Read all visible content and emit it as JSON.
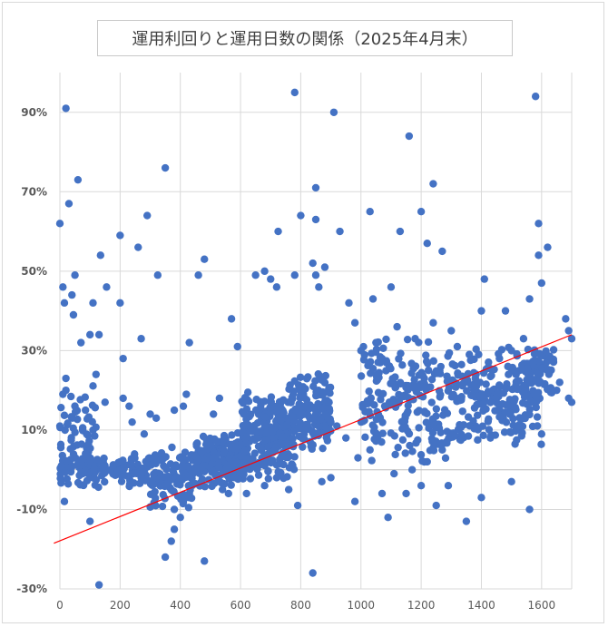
{
  "chart_data": {
    "type": "scatter",
    "title": "運用利回りと運用日数の関係（2025年4月末）",
    "xlabel": "",
    "ylabel": "",
    "xlim": [
      0,
      1700
    ],
    "ylim": [
      -30,
      100
    ],
    "x_ticks": [
      0,
      200,
      400,
      600,
      800,
      1000,
      1200,
      1400,
      1600
    ],
    "y_ticks": [
      -30,
      -10,
      10,
      30,
      50,
      70,
      90
    ],
    "y_tick_labels": [
      "-30%",
      "-10%",
      "10%",
      "30%",
      "50%",
      "70%",
      "90%"
    ],
    "grid": true,
    "legend": "none",
    "point_color": "#4472c4",
    "trendline": {
      "color": "#ff0000",
      "x": [
        -20,
        1700
      ],
      "y": [
        -18.5,
        34
      ]
    },
    "clusters": [
      {
        "x": [
          0,
          300
        ],
        "y": [
          -5,
          5
        ],
        "n": 140
      },
      {
        "x": [
          0,
          120
        ],
        "y": [
          -2,
          22
        ],
        "n": 50
      },
      {
        "x": [
          300,
          450
        ],
        "y": [
          -10,
          6
        ],
        "n": 110
      },
      {
        "x": [
          450,
          620
        ],
        "y": [
          -5,
          10
        ],
        "n": 220
      },
      {
        "x": [
          600,
          780
        ],
        "y": [
          -3,
          20
        ],
        "n": 260
      },
      {
        "x": [
          760,
          900
        ],
        "y": [
          3,
          25
        ],
        "n": 140
      },
      {
        "x": [
          1000,
          1330
        ],
        "y": [
          0,
          35
        ],
        "n": 230
      },
      {
        "x": [
          1320,
          1600
        ],
        "y": [
          5,
          32
        ],
        "n": 200
      },
      {
        "x": [
          1540,
          1640
        ],
        "y": [
          18,
          32
        ],
        "n": 50
      }
    ],
    "points": [
      [
        20,
        91
      ],
      [
        30,
        67
      ],
      [
        60,
        73
      ],
      [
        0,
        62
      ],
      [
        10,
        46
      ],
      [
        40,
        44
      ],
      [
        50,
        49
      ],
      [
        45,
        39
      ],
      [
        15,
        42
      ],
      [
        110,
        42
      ],
      [
        100,
        34
      ],
      [
        70,
        32
      ],
      [
        130,
        34
      ],
      [
        135,
        54
      ],
      [
        155,
        46
      ],
      [
        200,
        59
      ],
      [
        200,
        42
      ],
      [
        210,
        28
      ],
      [
        260,
        56
      ],
      [
        290,
        64
      ],
      [
        350,
        76
      ],
      [
        325,
        49
      ],
      [
        460,
        49
      ],
      [
        480,
        53
      ],
      [
        570,
        38
      ],
      [
        590,
        31
      ],
      [
        430,
        32
      ],
      [
        270,
        33
      ],
      [
        20,
        20
      ],
      [
        20,
        23
      ],
      [
        10,
        19
      ],
      [
        0,
        11
      ],
      [
        5,
        1
      ],
      [
        15,
        -8
      ],
      [
        100,
        -13
      ],
      [
        130,
        -29
      ],
      [
        110,
        10
      ],
      [
        85,
        15
      ],
      [
        120,
        24
      ],
      [
        150,
        17
      ],
      [
        210,
        18
      ],
      [
        230,
        16
      ],
      [
        240,
        12
      ],
      [
        280,
        9
      ],
      [
        300,
        14
      ],
      [
        320,
        13
      ],
      [
        380,
        15
      ],
      [
        410,
        16
      ],
      [
        420,
        19
      ],
      [
        510,
        14
      ],
      [
        530,
        18
      ],
      [
        350,
        -22
      ],
      [
        370,
        -18
      ],
      [
        380,
        -15
      ],
      [
        400,
        -12
      ],
      [
        480,
        -23
      ],
      [
        380,
        -10
      ],
      [
        410,
        -8
      ],
      [
        430,
        -6
      ],
      [
        650,
        49
      ],
      [
        680,
        50
      ],
      [
        720,
        46
      ],
      [
        725,
        60
      ],
      [
        700,
        48
      ],
      [
        780,
        95
      ],
      [
        800,
        64
      ],
      [
        850,
        71
      ],
      [
        850,
        63
      ],
      [
        840,
        52
      ],
      [
        880,
        51
      ],
      [
        850,
        49
      ],
      [
        780,
        49
      ],
      [
        860,
        46
      ],
      [
        910,
        90
      ],
      [
        930,
        60
      ],
      [
        960,
        42
      ],
      [
        1030,
        65
      ],
      [
        1040,
        43
      ],
      [
        1100,
        46
      ],
      [
        1130,
        60
      ],
      [
        1160,
        84
      ],
      [
        1200,
        65
      ],
      [
        1220,
        57
      ],
      [
        1240,
        72
      ],
      [
        1270,
        55
      ],
      [
        1410,
        48
      ],
      [
        1400,
        40
      ],
      [
        1480,
        40
      ],
      [
        1580,
        94
      ],
      [
        1590,
        62
      ],
      [
        1620,
        56
      ],
      [
        1600,
        47
      ],
      [
        1590,
        54
      ],
      [
        1560,
        43
      ],
      [
        1540,
        33
      ],
      [
        1680,
        38
      ],
      [
        1690,
        35
      ],
      [
        1700,
        33
      ],
      [
        1700,
        17
      ],
      [
        1690,
        18
      ],
      [
        1560,
        -10
      ],
      [
        1500,
        -3
      ],
      [
        1400,
        -7
      ],
      [
        1350,
        -13
      ],
      [
        1290,
        -4
      ],
      [
        1250,
        -9
      ],
      [
        1200,
        -4
      ],
      [
        1150,
        -6
      ],
      [
        1090,
        -12
      ],
      [
        1070,
        -6
      ],
      [
        980,
        -8
      ],
      [
        900,
        -2
      ],
      [
        840,
        -26
      ],
      [
        870,
        -3
      ],
      [
        790,
        -9
      ],
      [
        760,
        -5
      ],
      [
        950,
        8
      ],
      [
        980,
        37
      ],
      [
        1000,
        30
      ],
      [
        1050,
        32
      ],
      [
        1070,
        28
      ],
      [
        1120,
        36
      ],
      [
        1180,
        33
      ],
      [
        1240,
        37
      ],
      [
        1300,
        35
      ],
      [
        1320,
        31
      ],
      [
        1360,
        29
      ],
      [
        1460,
        28
      ],
      [
        1500,
        30
      ],
      [
        1620,
        25
      ],
      [
        1650,
        20
      ],
      [
        1660,
        22
      ],
      [
        1600,
        9
      ],
      [
        1520,
        11
      ],
      [
        1430,
        8
      ],
      [
        1270,
        5
      ],
      [
        1220,
        2
      ],
      [
        1170,
        0
      ],
      [
        1110,
        -1
      ],
      [
        1030,
        5
      ],
      [
        990,
        3
      ],
      [
        920,
        11
      ],
      [
        900,
        12
      ],
      [
        560,
        -6
      ],
      [
        540,
        -5
      ],
      [
        620,
        -6
      ],
      [
        680,
        -4
      ],
      [
        720,
        -2
      ]
    ]
  }
}
